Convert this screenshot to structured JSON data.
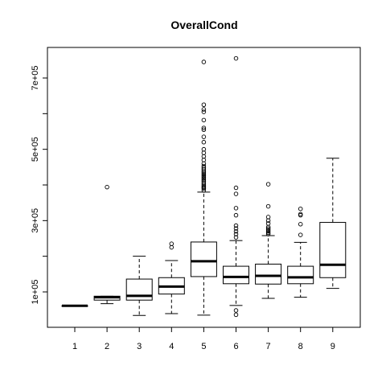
{
  "chart_data": {
    "type": "box",
    "title": "OverallCond",
    "xlabel": "",
    "ylabel": "",
    "categories": [
      "1",
      "2",
      "3",
      "4",
      "5",
      "6",
      "7",
      "8",
      "9"
    ],
    "x_tick_labels": [
      "1",
      "2",
      "3",
      "4",
      "5",
      "6",
      "7",
      "8",
      "9"
    ],
    "y_ticks": [
      100000,
      300000,
      500000,
      700000
    ],
    "y_tick_labels": [
      "1e+05",
      "3e+05",
      "5e+05",
      "7e+05"
    ],
    "ylim": [
      20000,
      770000
    ],
    "grid": false,
    "boxes": [
      {
        "category": "1",
        "min": 61000,
        "q1": 61000,
        "median": 61000,
        "q3": 61000,
        "max": 61000,
        "outliers": []
      },
      {
        "category": "2",
        "min": 67000,
        "q1": 77000,
        "median": 85000,
        "q3": 88000,
        "max": 88000,
        "outliers": [
          394000
        ]
      },
      {
        "category": "3",
        "min": 34000,
        "q1": 77000,
        "median": 89000,
        "q3": 136000,
        "max": 200000,
        "outliers": []
      },
      {
        "category": "4",
        "min": 39000,
        "q1": 94000,
        "median": 115000,
        "q3": 140000,
        "max": 188000,
        "outliers": [
          225000,
          235000
        ]
      },
      {
        "category": "5",
        "min": 35000,
        "q1": 143000,
        "median": 186000,
        "q3": 240000,
        "max": 380000,
        "outliers": [
          385000,
          390000,
          393000,
          396000,
          400000,
          405000,
          410000,
          414000,
          418000,
          422000,
          426000,
          430000,
          434000,
          438000,
          443000,
          448000,
          453000,
          460000,
          470000,
          480000,
          490000,
          500000,
          520000,
          535000,
          555000,
          560000,
          582000,
          605000,
          612000,
          625000,
          745000
        ]
      },
      {
        "category": "6",
        "min": 62000,
        "q1": 123000,
        "median": 142000,
        "q3": 172000,
        "max": 244000,
        "outliers": [
          36000,
          48000,
          253000,
          262000,
          270000,
          278000,
          286000,
          315000,
          335000,
          375000,
          392000,
          755000
        ]
      },
      {
        "category": "7",
        "min": 82000,
        "q1": 122000,
        "median": 145000,
        "q3": 178000,
        "max": 258000,
        "outliers": [
          262000,
          266000,
          270000,
          274000,
          278000,
          282000,
          292000,
          300000,
          310000,
          340000,
          402000
        ]
      },
      {
        "category": "8",
        "min": 85000,
        "q1": 123000,
        "median": 141000,
        "q3": 172000,
        "max": 239000,
        "outliers": [
          260000,
          290000,
          315000,
          318000,
          333000
        ]
      },
      {
        "category": "9",
        "min": 110000,
        "q1": 140000,
        "median": 176000,
        "q3": 295000,
        "max": 475000,
        "outliers": []
      }
    ]
  }
}
